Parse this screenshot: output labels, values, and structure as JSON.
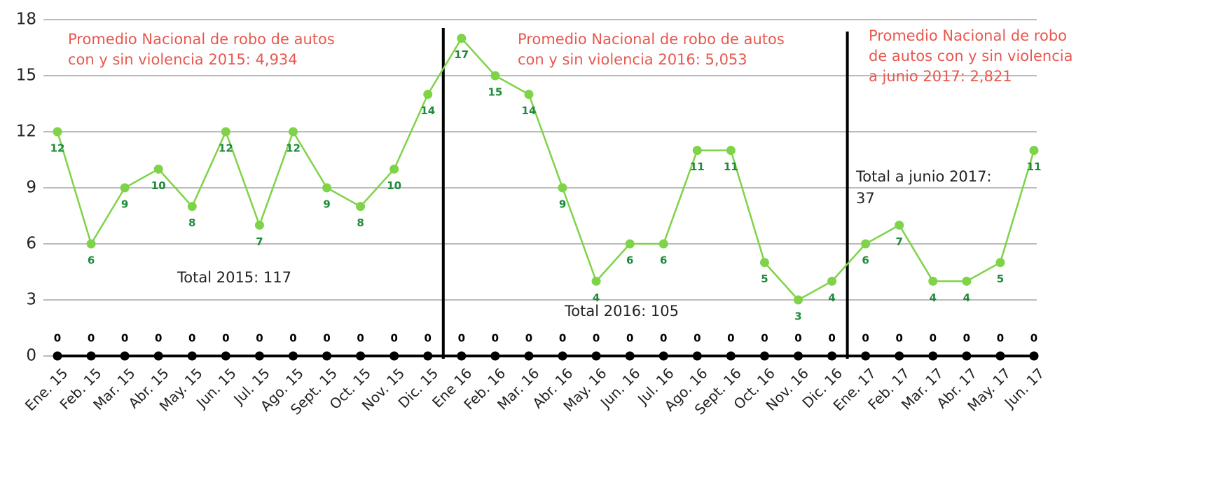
{
  "chart_data": {
    "type": "line",
    "categories": [
      "Ene. 15",
      "Feb. 15",
      "Mar. 15",
      "Abr. 15",
      "May. 15",
      "Jun. 15",
      "Jul. 15",
      "Ago. 15",
      "Sept. 15",
      "Oct. 15",
      "Nov. 15",
      "Dic. 15",
      "Ene 16",
      "Feb. 16",
      "Mar. 16",
      "Abr. 16",
      "May. 16",
      "Jun. 16",
      "Jul. 16",
      "Ago. 16",
      "Sept. 16",
      "Oct. 16",
      "Nov. 16",
      "Dic. 16",
      "Ene. 17",
      "Feb. 17",
      "Mar. 17",
      "Abr. 17",
      "May. 17",
      "Jun. 17"
    ],
    "series": [
      {
        "color": "#7ed348",
        "label_color": "#1e8a3a",
        "values": [
          12,
          6,
          9,
          10,
          8,
          12,
          7,
          12,
          9,
          8,
          10,
          14,
          17,
          15,
          14,
          9,
          4,
          6,
          6,
          11,
          11,
          5,
          3,
          4,
          6,
          7,
          4,
          4,
          5,
          11
        ]
      },
      {
        "color": "#000000",
        "label_color": "#000000",
        "values": [
          0,
          0,
          0,
          0,
          0,
          0,
          0,
          0,
          0,
          0,
          0,
          0,
          0,
          0,
          0,
          0,
          0,
          0,
          0,
          0,
          0,
          0,
          0,
          0,
          0,
          0,
          0,
          0,
          0,
          0
        ]
      }
    ],
    "ylim": [
      0,
      18
    ],
    "yticks": [
      0,
      3,
      6,
      9,
      12,
      15,
      18
    ],
    "grid": true,
    "annotations": [
      {
        "color": "#e8584f",
        "lines": [
          "Promedio Nacional de robo de autos",
          "con y sin violencia 2015: 4,934"
        ]
      },
      {
        "color": "#e8584f",
        "lines": [
          "Promedio Nacional de robo de autos",
          "con y sin violencia 2016: 5,053"
        ]
      },
      {
        "color": "#e8584f",
        "lines": [
          "Promedio Nacional de robo",
          "de autos con y sin violencia",
          "a junio 2017: 2,821"
        ]
      },
      {
        "color": "#222222",
        "lines": [
          "Total 2015: 117"
        ]
      },
      {
        "color": "#222222",
        "lines": [
          "Total 2016: 105"
        ]
      },
      {
        "color": "#222222",
        "lines": [
          "Total a junio 2017:",
          "37"
        ]
      }
    ]
  }
}
